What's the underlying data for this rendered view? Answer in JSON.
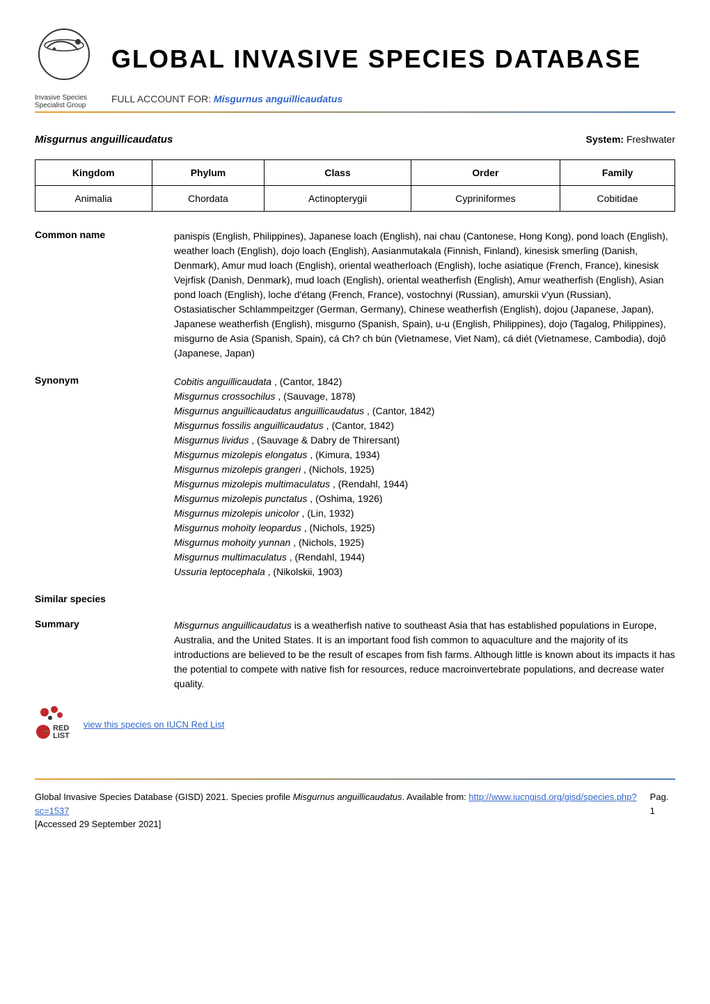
{
  "header": {
    "logo_text_line1": "Invasive Species",
    "logo_text_line2": "Specialist Group",
    "main_title": "GLOBAL INVASIVE SPECIES DATABASE",
    "subtitle_prefix": "FULL ACCOUNT FOR: ",
    "subtitle_species": "Misgurnus anguillicaudatus"
  },
  "species_header": {
    "name": "Misgurnus anguillicaudatus",
    "system_label": "System: ",
    "system_value": "Freshwater"
  },
  "taxonomy": {
    "headers": [
      "Kingdom",
      "Phylum",
      "Class",
      "Order",
      "Family"
    ],
    "values": [
      "Animalia",
      "Chordata",
      "Actinopterygii",
      "Cypriniformes",
      "Cobitidae"
    ]
  },
  "sections": {
    "common_name": {
      "label": "Common name",
      "content": "panispis (English, Philippines), Japanese loach (English), nai chau (Cantonese, Hong Kong), pond loach (English), weather loach (English), dojo loach (English), Aasianmutakala (Finnish, Finland), kinesisk smerling (Danish, Denmark), Amur mud loach (English), oriental weatherloach (English), loche asiatique (French, France), kinesisk Vejrfisk (Danish, Denmark), mud loach (English), oriental weatherfish (English), Amur weatherfish (English), Asian pond loach (English), loche d'étang (French, France), vostochnyi (Russian), amurskii v'yun (Russian), Ostasiatischer Schlammpeitzger (German, Germany), Chinese weatherfish (English), dojou (Japanese, Japan), Japanese weatherfish (English), misgurno (Spanish, Spain), u-u (English, Philippines), dojo (Tagalog, Philippines), misgurno de Asia (Spanish, Spain), cá Ch? ch bùn (Vietnamese, Viet Nam), cá diét (Vietnamese, Cambodia), dojô (Japanese, Japan)"
    },
    "synonym": {
      "label": "Synonym",
      "items": [
        {
          "name": "Cobitis anguillicaudata",
          "author": ", (Cantor, 1842)"
        },
        {
          "name": "Misgurnus crossochilus",
          "author": ", (Sauvage, 1878)"
        },
        {
          "name": "Misgurnus anguillicaudatus anguillicaudatus",
          "author": ", (Cantor, 1842)"
        },
        {
          "name": "Misgurnus fossilis anguillicaudatus",
          "author": ", (Cantor, 1842)"
        },
        {
          "name": "Misgurnus lividus",
          "author": ", (Sauvage & Dabry de Thirersant)"
        },
        {
          "name": "Misgurnus mizolepis elongatus",
          "author": ", (Kimura, 1934)"
        },
        {
          "name": "Misgurnus mizolepis grangeri",
          "author": ", (Nichols, 1925)"
        },
        {
          "name": "Misgurnus mizolepis multimaculatus",
          "author": ", (Rendahl, 1944)"
        },
        {
          "name": "Misgurnus mizolepis punctatus",
          "author": ", (Oshima, 1926)"
        },
        {
          "name": "Misgurnus mizolepis unicolor",
          "author": ", (Lin, 1932)"
        },
        {
          "name": "Misgurnus mohoity leopardus",
          "author": ", (Nichols, 1925)"
        },
        {
          "name": "Misgurnus mohoity yunnan",
          "author": ", (Nichols, 1925)"
        },
        {
          "name": "Misgurnus multimaculatus",
          "author": ", (Rendahl, 1944)"
        },
        {
          "name": "Ussuria leptocephala",
          "author": ", (Nikolskii, 1903)"
        }
      ]
    },
    "similar_species": {
      "label": "Similar species",
      "content": ""
    },
    "summary": {
      "label": "Summary",
      "species_name": "Misgurnus anguillicaudatus",
      "content_after": " is a weatherfish native to southeast Asia that has established populations in Europe, Australia, and the United States. It is an important food fish common to aquaculture and the majority of its introductions are believed to be the result of escapes from fish farms. Although little is known about its impacts it has the potential to compete with native fish for resources, reduce macroinvertebrate populations, and decrease water quality."
    }
  },
  "redlist": {
    "link_text": "view this species on IUCN Red List",
    "text_red": "RED",
    "text_list": "LIST"
  },
  "footer": {
    "citation_prefix": "Global Invasive Species Database (GISD) 2021. Species profile ",
    "citation_species": "Misgurnus anguillicaudatus",
    "citation_available": ". Available from: ",
    "citation_url": "http://www.iucngisd.org/gisd/species.php?sc=1537",
    "citation_accessed": " [Accessed 29 September 2021]",
    "page_label": "Pag. 1"
  },
  "colors": {
    "link_color": "#3366cc",
    "gradient_start": "#e8a030",
    "gradient_end": "#4a7db8",
    "text_color": "#000000",
    "red_icon": "#c0272d"
  }
}
